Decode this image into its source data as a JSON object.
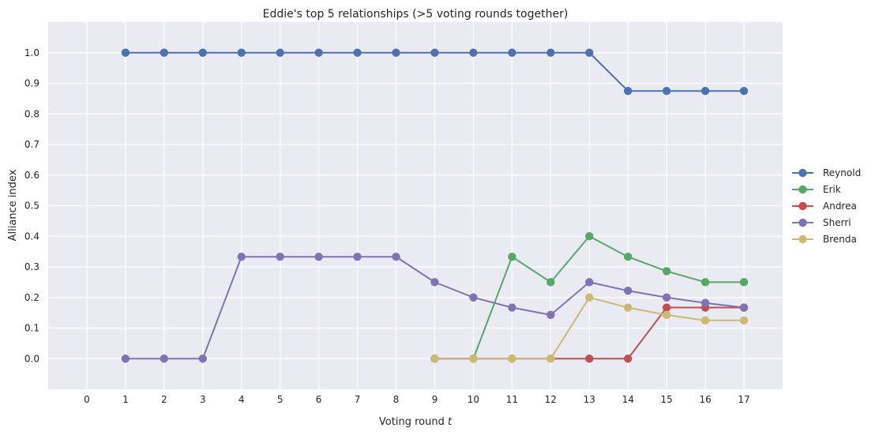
{
  "chart_data": {
    "type": "line",
    "title": "Eddie's top 5 relationships (>5 voting rounds together)",
    "xlabel": "Voting round",
    "xlabel_var": "t",
    "ylabel": "Alliance index",
    "xlim": [
      -1,
      18
    ],
    "ylim": [
      -0.1,
      1.1
    ],
    "xticks": [
      0,
      1,
      2,
      3,
      4,
      5,
      6,
      7,
      8,
      9,
      10,
      11,
      12,
      13,
      14,
      15,
      16,
      17
    ],
    "yticks": [
      0.0,
      0.1,
      0.2,
      0.3,
      0.4,
      0.5,
      0.6,
      0.7,
      0.8,
      0.9,
      1.0
    ],
    "ytick_labels": [
      "0.0",
      "0.1",
      "0.2",
      "0.3",
      "0.4",
      "0.5",
      "0.6",
      "0.7",
      "0.8",
      "0.9",
      "1.0"
    ],
    "grid": true,
    "legend_position": "right",
    "series": [
      {
        "name": "Reynold",
        "color": "#4c72b0",
        "x": [
          1,
          2,
          3,
          4,
          5,
          6,
          7,
          8,
          9,
          10,
          11,
          12,
          13,
          14,
          15,
          16,
          17
        ],
        "y": [
          1.0,
          1.0,
          1.0,
          1.0,
          1.0,
          1.0,
          1.0,
          1.0,
          1.0,
          1.0,
          1.0,
          1.0,
          1.0,
          0.875,
          0.875,
          0.875,
          0.875
        ]
      },
      {
        "name": "Erik",
        "color": "#55a868",
        "x": [
          9,
          10,
          11,
          12,
          13,
          14,
          15,
          16,
          17
        ],
        "y": [
          0.0,
          0.0,
          0.333,
          0.25,
          0.4,
          0.333,
          0.286,
          0.25,
          0.25
        ]
      },
      {
        "name": "Andrea",
        "color": "#c44e52",
        "x": [
          9,
          10,
          11,
          12,
          13,
          14,
          15,
          16,
          17
        ],
        "y": [
          0.0,
          0.0,
          0.0,
          0.0,
          0.0,
          0.0,
          0.167,
          0.167,
          0.167
        ]
      },
      {
        "name": "Sherri",
        "color": "#8172b2",
        "x": [
          1,
          2,
          3,
          4,
          5,
          6,
          7,
          8,
          9,
          10,
          11,
          12,
          13,
          14,
          15,
          16,
          17
        ],
        "y": [
          0.0,
          0.0,
          0.0,
          0.333,
          0.333,
          0.333,
          0.333,
          0.333,
          0.25,
          0.2,
          0.167,
          0.143,
          0.25,
          0.222,
          0.2,
          0.182,
          0.167
        ]
      },
      {
        "name": "Brenda",
        "color": "#ccb974",
        "x": [
          9,
          10,
          11,
          12,
          13,
          14,
          15,
          16,
          17
        ],
        "y": [
          0.0,
          0.0,
          0.0,
          0.0,
          0.2,
          0.167,
          0.143,
          0.125,
          0.125
        ]
      }
    ]
  }
}
